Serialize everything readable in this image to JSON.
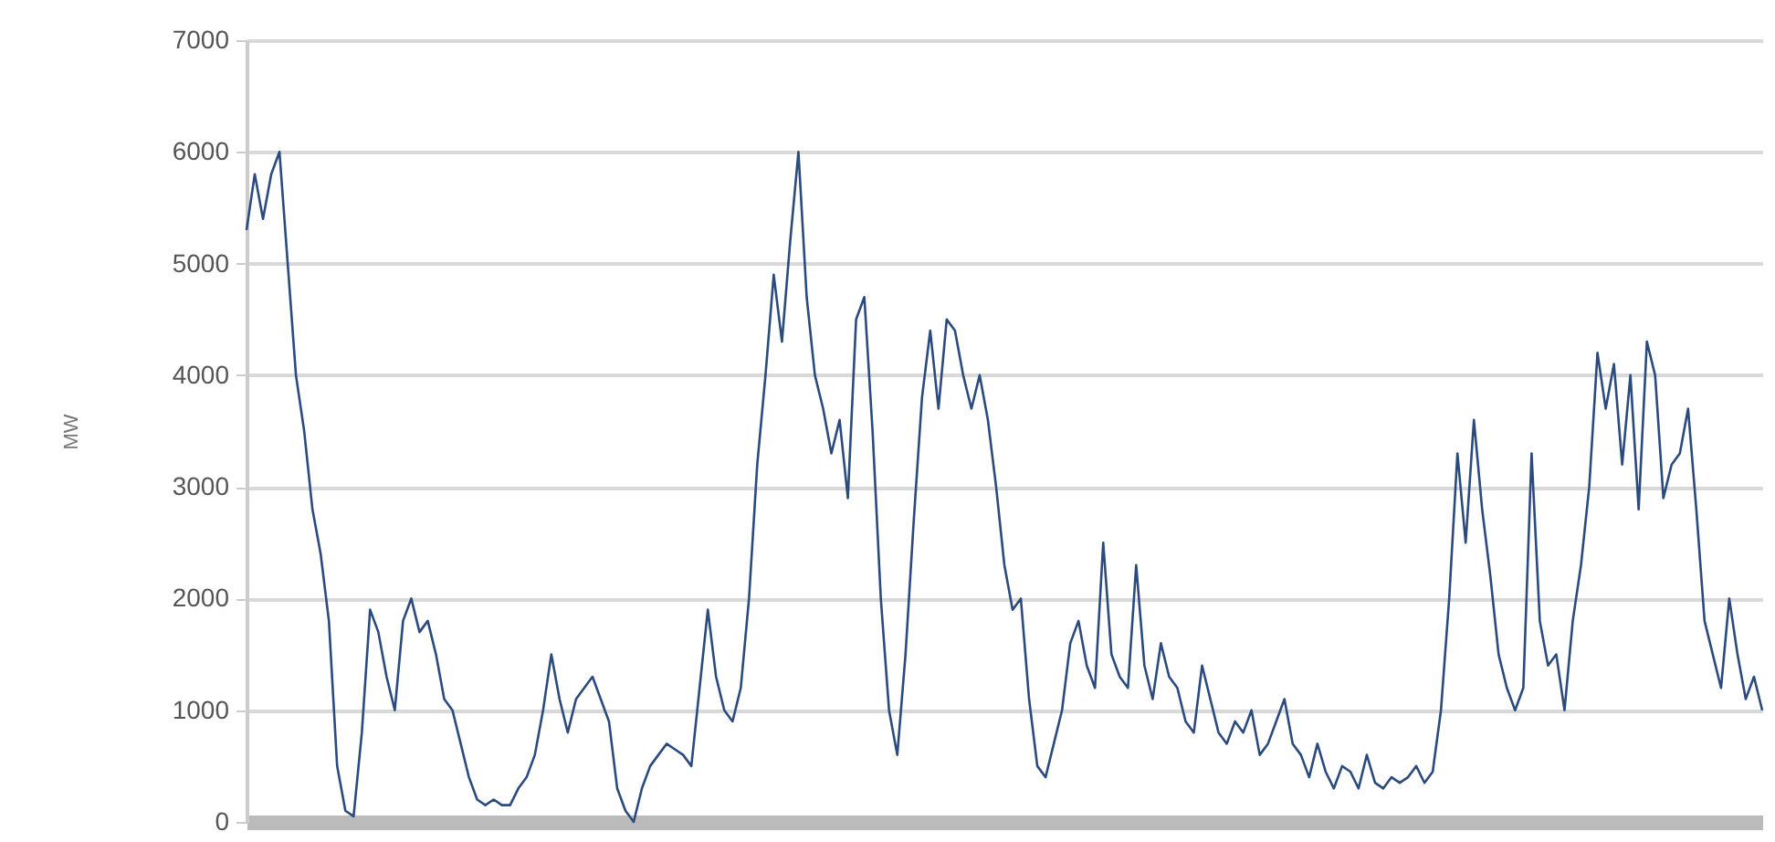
{
  "chart_data": {
    "type": "line",
    "ylabel": "MW",
    "categories": [
      null,
      null,
      null,
      null,
      null,
      null,
      null,
      null,
      null,
      null,
      null,
      null,
      null,
      null,
      null,
      null,
      null,
      null,
      null,
      null,
      null,
      null,
      null,
      null,
      null,
      null,
      null,
      null,
      null,
      null,
      null,
      null,
      null,
      null,
      null,
      null,
      null,
      null,
      null,
      null,
      null,
      null,
      null,
      null,
      null,
      null,
      null,
      null,
      null,
      null,
      null,
      null,
      null,
      null,
      null,
      null,
      null,
      null,
      null,
      null,
      null,
      null,
      null,
      null,
      null,
      null,
      null,
      null,
      null,
      null,
      null,
      null,
      null,
      null,
      null,
      null,
      null,
      null,
      null,
      null,
      null,
      null,
      null,
      null,
      null,
      null,
      null,
      null,
      null,
      null,
      null,
      null,
      null,
      null,
      null,
      null,
      null,
      null,
      null,
      null,
      null,
      null,
      null,
      null,
      null,
      null,
      null,
      null,
      null,
      null,
      null,
      null,
      null,
      null,
      null,
      null,
      null,
      null,
      null,
      null,
      null,
      null,
      null,
      null,
      null,
      null,
      null,
      null,
      null,
      null,
      null,
      null,
      null,
      null,
      null,
      null,
      null,
      null,
      null,
      null,
      null,
      null,
      null,
      null,
      null,
      null,
      null,
      null,
      null,
      null,
      null,
      null,
      null,
      null,
      null,
      null,
      null,
      null,
      null,
      null,
      null,
      null,
      null,
      null,
      null,
      null,
      null,
      null,
      null,
      null,
      null,
      null,
      null,
      null,
      null,
      null,
      null,
      null,
      null,
      null,
      null,
      null,
      null,
      null,
      null
    ],
    "series": [
      {
        "color": "#2b4a7e",
        "values": [
          5300,
          5800,
          5400,
          5800,
          6000,
          5000,
          4000,
          3500,
          2800,
          2400,
          1800,
          500,
          100,
          50,
          800,
          1900,
          1700,
          1300,
          1000,
          1800,
          2000,
          1700,
          1800,
          1500,
          1100,
          1000,
          700,
          400,
          200,
          150,
          200,
          150,
          150,
          300,
          400,
          600,
          1000,
          1500,
          1100,
          800,
          1100,
          1200,
          1300,
          1100,
          900,
          300,
          100,
          0,
          300,
          500,
          600,
          700,
          650,
          600,
          500,
          1200,
          1900,
          1300,
          1000,
          900,
          1200,
          2000,
          3200,
          4000,
          4900,
          4300,
          5200,
          6000,
          4700,
          4000,
          3700,
          3300,
          3600,
          2900,
          4500,
          4700,
          3500,
          2000,
          1000,
          600,
          1500,
          2700,
          3800,
          4400,
          3700,
          4500,
          4400,
          4000,
          3700,
          4000,
          3600,
          3000,
          2300,
          1900,
          2000,
          1100,
          500,
          400,
          700,
          1000,
          1600,
          1800,
          1400,
          1200,
          2500,
          1500,
          1300,
          1200,
          2300,
          1400,
          1100,
          1600,
          1300,
          1200,
          900,
          800,
          1400,
          1100,
          800,
          700,
          900,
          800,
          1000,
          600,
          700,
          900,
          1100,
          700,
          600,
          400,
          700,
          450,
          300,
          500,
          450,
          300,
          600,
          350,
          300,
          400,
          350,
          400,
          500,
          350,
          450,
          1000,
          2000,
          3300,
          2500,
          3600,
          2800,
          2200,
          1500,
          1200,
          1000,
          1200,
          3300,
          1800,
          1400,
          1500,
          1000,
          1800,
          2300,
          3000,
          4200,
          3700,
          4100,
          3200,
          4000,
          2800,
          4300,
          4000,
          2900,
          3200,
          3300,
          3700,
          2800,
          1800,
          1500,
          1200,
          2000,
          1500,
          1100,
          1300,
          1000
        ]
      }
    ],
    "ylim": [
      0,
      7000
    ],
    "yticks": [
      0,
      1000,
      2000,
      3000,
      4000,
      5000,
      6000,
      7000
    ],
    "grid": "y",
    "tick_labels": "y",
    "marker": "none",
    "line_style": "solid"
  }
}
